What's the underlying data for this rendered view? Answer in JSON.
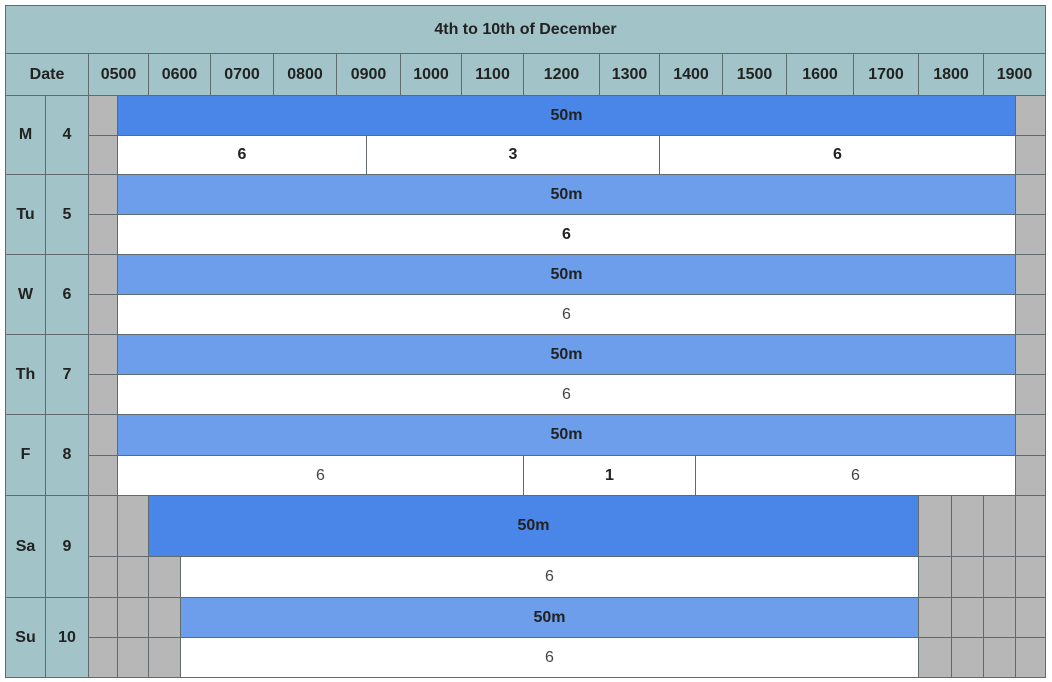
{
  "title": "4th to 10th of December",
  "header": {
    "date": "Date",
    "times": [
      "0500",
      "0600",
      "0700",
      "0800",
      "0900",
      "1000",
      "1100",
      "1200",
      "1300",
      "1400",
      "1500",
      "1600",
      "1700",
      "1800",
      "1900"
    ]
  },
  "days": [
    {
      "day": "M",
      "date": "4",
      "rows": [
        [
          "50m"
        ],
        [
          "6",
          "3",
          "6"
        ]
      ]
    },
    {
      "day": "Tu",
      "date": "5",
      "rows": [
        [
          "50m"
        ],
        [
          "6"
        ]
      ]
    },
    {
      "day": "W",
      "date": "6",
      "rows": [
        [
          "50m"
        ],
        [
          "6"
        ]
      ]
    },
    {
      "day": "Th",
      "date": "7",
      "rows": [
        [
          "50m"
        ],
        [
          "6"
        ]
      ]
    },
    {
      "day": "F",
      "date": "8",
      "rows": [
        [
          "50m"
        ],
        [
          "6",
          "1",
          "6"
        ]
      ]
    },
    {
      "day": "Sa",
      "date": "9",
      "rows": [
        [
          "50m"
        ],
        [
          "6"
        ]
      ]
    },
    {
      "day": "Su",
      "date": "10",
      "rows": [
        [
          "50m"
        ],
        [
          "6"
        ]
      ]
    }
  ]
}
